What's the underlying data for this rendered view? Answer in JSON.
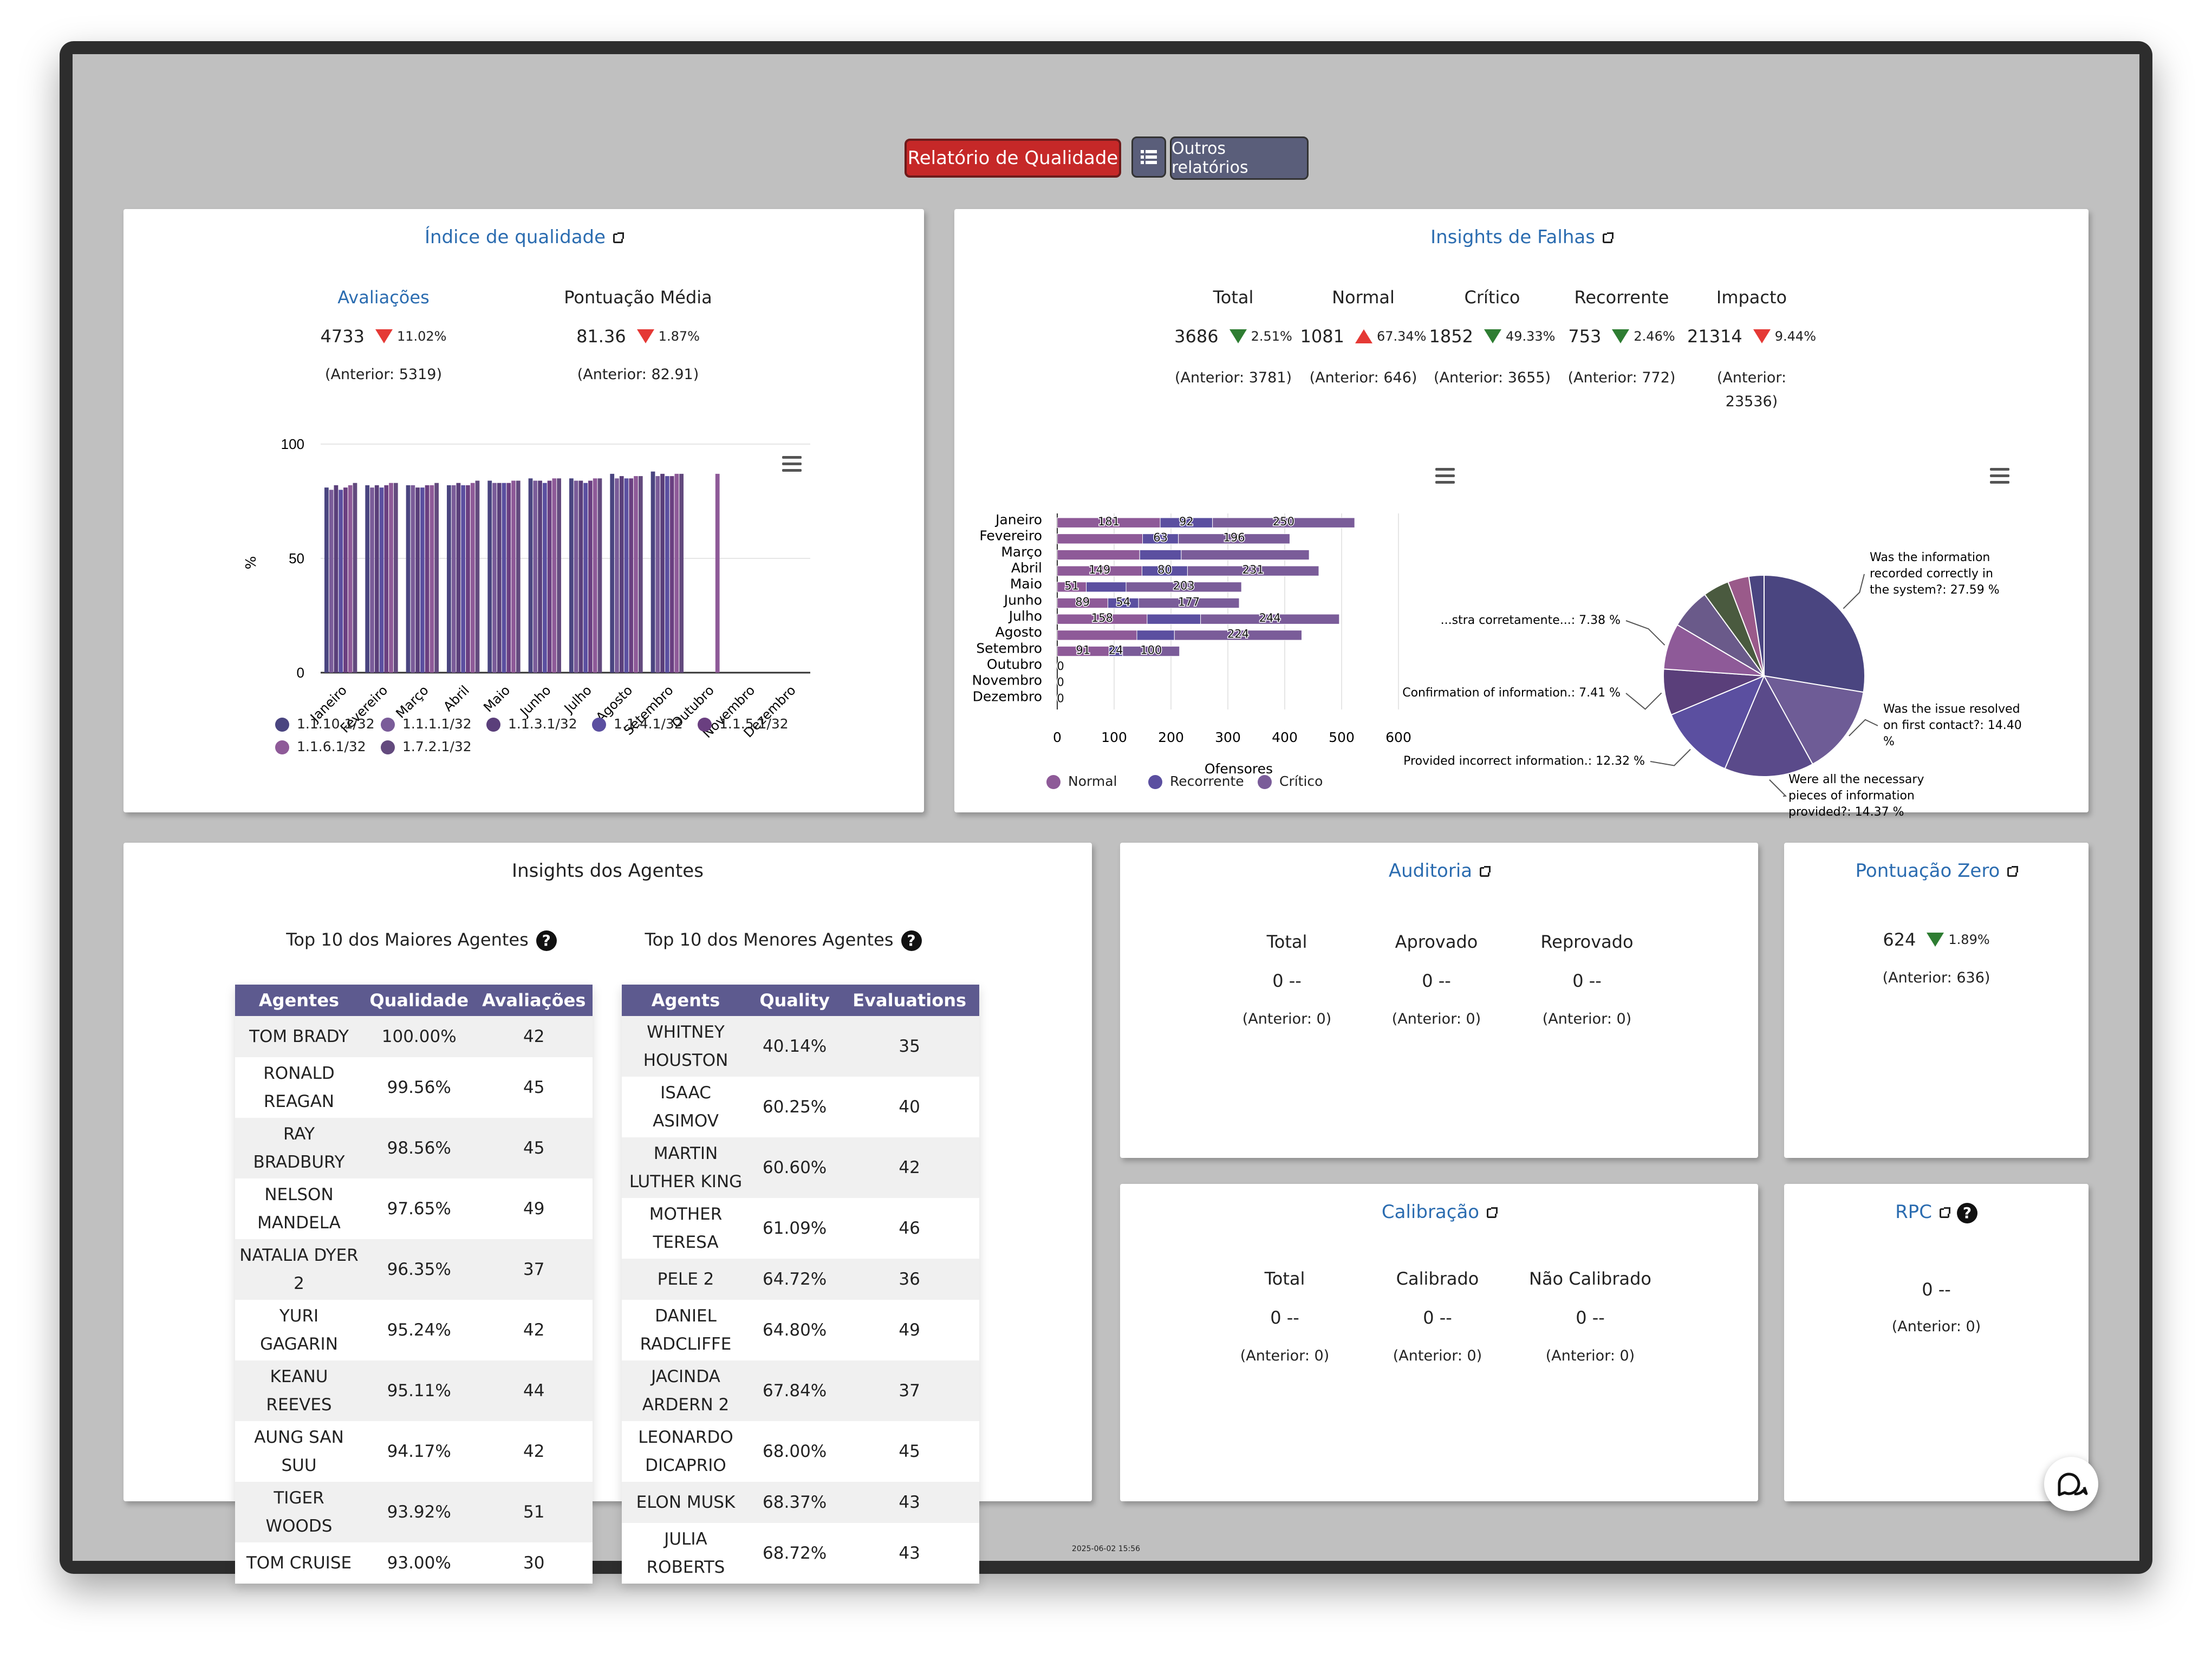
{
  "header": {
    "report_button": "Relatório de Qualidade",
    "list_icon": "list-icon",
    "other_reports": "Outros relatórios"
  },
  "quality_panel": {
    "title": "Índice de qualidade",
    "evaluations": {
      "label": "Avaliações",
      "value": "4733",
      "change": "11.02%",
      "previous": "(Anterior: 5319)"
    },
    "average_score": {
      "label": "Pontuação Média",
      "value": "81.36",
      "change": "1.87%",
      "previous": "(Anterior: 82.91)"
    }
  },
  "failures_panel": {
    "title": "Insights de Falhas",
    "stats": [
      {
        "label": "Total",
        "value": "3686",
        "change": "2.51%",
        "trend": "down-green",
        "previous": "(Anterior: 3781)"
      },
      {
        "label": "Normal",
        "value": "1081",
        "change": "67.34%",
        "trend": "up-red",
        "previous": "(Anterior: 646)"
      },
      {
        "label": "Crítico",
        "value": "1852",
        "change": "49.33%",
        "trend": "down-green",
        "previous": "(Anterior: 3655)"
      },
      {
        "label": "Recorrente",
        "value": "753",
        "change": "2.46%",
        "trend": "down-green",
        "previous": "(Anterior: 772)"
      },
      {
        "label": "Impacto",
        "value": "21314",
        "change": "9.44%",
        "trend": "down-red",
        "previous": "(Anterior: 23536)"
      }
    ]
  },
  "agents_panel": {
    "title": "Insights dos Agentes",
    "top": {
      "title": "Top 10 dos Maiores Agentes",
      "headers": [
        "Agentes",
        "Qualidade",
        "Avaliações"
      ],
      "rows": [
        [
          "TOM BRADY",
          "100.00%",
          "42"
        ],
        [
          "RONALD REAGAN",
          "99.56%",
          "45"
        ],
        [
          "RAY BRADBURY",
          "98.56%",
          "45"
        ],
        [
          "NELSON MANDELA",
          "97.65%",
          "49"
        ],
        [
          "NATALIA DYER 2",
          "96.35%",
          "37"
        ],
        [
          "YURI GAGARIN",
          "95.24%",
          "42"
        ],
        [
          "KEANU REEVES",
          "95.11%",
          "44"
        ],
        [
          "AUNG SAN SUU",
          "94.17%",
          "42"
        ],
        [
          "TIGER WOODS",
          "93.92%",
          "51"
        ],
        [
          "TOM CRUISE",
          "93.00%",
          "30"
        ]
      ]
    },
    "bottom": {
      "title": "Top 10 dos Menores Agentes",
      "headers": [
        "Agents",
        "Quality",
        "Evaluations"
      ],
      "rows": [
        [
          "WHITNEY HOUSTON",
          "40.14%",
          "35"
        ],
        [
          "ISAAC ASIMOV",
          "60.25%",
          "40"
        ],
        [
          "MARTIN LUTHER KING",
          "60.60%",
          "42"
        ],
        [
          "MOTHER TERESA",
          "61.09%",
          "46"
        ],
        [
          "PELE 2",
          "64.72%",
          "36"
        ],
        [
          "DANIEL RADCLIFFE",
          "64.80%",
          "49"
        ],
        [
          "JACINDA ARDERN 2",
          "67.84%",
          "37"
        ],
        [
          "LEONARDO DICAPRIO",
          "68.00%",
          "45"
        ],
        [
          "ELON MUSK",
          "68.37%",
          "43"
        ],
        [
          "JULIA ROBERTS",
          "68.72%",
          "43"
        ]
      ]
    }
  },
  "audit_panel": {
    "title": "Auditoria",
    "stats": [
      {
        "label": "Total",
        "value": "0 --",
        "previous": "(Anterior: 0)"
      },
      {
        "label": "Aprovado",
        "value": "0 --",
        "previous": "(Anterior: 0)"
      },
      {
        "label": "Reprovado",
        "value": "0 --",
        "previous": "(Anterior: 0)"
      }
    ]
  },
  "zero_panel": {
    "title": "Pontuação Zero",
    "value": "624",
    "change": "1.89%",
    "previous": "(Anterior: 636)"
  },
  "calibration_panel": {
    "title": "Calibração",
    "stats": [
      {
        "label": "Total",
        "value": "0 --",
        "previous": "(Anterior: 0)"
      },
      {
        "label": "Calibrado",
        "value": "0 --",
        "previous": "(Anterior: 0)"
      },
      {
        "label": "Não Calibrado",
        "value": "0 --",
        "previous": "(Anterior: 0)"
      }
    ]
  },
  "rpc_panel": {
    "title": "RPC",
    "value": "0 --",
    "previous": "(Anterior: 0)"
  },
  "footer": {
    "timestamp": "2025-06-02 15:56"
  },
  "colors": {
    "accent_red": "#c62828",
    "table_header": "#5d5a8f",
    "button_gray": "#5a5e7a"
  },
  "chart_data": [
    {
      "type": "bar",
      "ylabel": "%",
      "ylim": [
        0,
        100
      ],
      "yticks": [
        0,
        50,
        100
      ],
      "categories": [
        "Janeiro",
        "Fevereiro",
        "Março",
        "Abril",
        "Maio",
        "Junho",
        "Julho",
        "Agosto",
        "Setembro",
        "Outubro",
        "Novembro",
        "Dezembro"
      ],
      "series": [
        {
          "name": "1.1.10.1/32",
          "color": "#4a4580",
          "values": [
            81,
            82,
            82,
            82,
            84,
            85,
            85,
            87,
            88,
            null,
            null,
            null
          ]
        },
        {
          "name": "1.1.1.1/32",
          "color": "#7a5c99",
          "values": [
            80,
            81,
            82,
            82,
            83,
            84,
            84,
            85,
            86,
            null,
            null,
            null
          ]
        },
        {
          "name": "1.1.3.1/32",
          "color": "#5a3f7a",
          "values": [
            82,
            82,
            81,
            83,
            83,
            84,
            84,
            86,
            87,
            null,
            null,
            null
          ]
        },
        {
          "name": "1.1.4.1/32",
          "color": "#5b4fa0",
          "values": [
            80,
            81,
            81,
            82,
            83,
            83,
            83,
            85,
            86,
            null,
            null,
            null
          ]
        },
        {
          "name": "1.1.5.1/32",
          "color": "#6a3f80",
          "values": [
            81,
            82,
            82,
            82,
            83,
            84,
            84,
            85,
            86,
            null,
            null,
            null
          ]
        },
        {
          "name": "1.1.6.1/32",
          "color": "#8e5a98",
          "values": [
            82,
            83,
            82,
            83,
            84,
            85,
            85,
            86,
            87,
            87,
            null,
            null
          ]
        },
        {
          "name": "1.7.2.1/32",
          "color": "#634a7e",
          "values": [
            83,
            83,
            83,
            84,
            84,
            85,
            85,
            86,
            87,
            null,
            null,
            null
          ]
        }
      ],
      "legend": "bottom"
    },
    {
      "type": "bar",
      "orientation": "horizontal",
      "stacked": true,
      "xlabel": "Ofensores",
      "xlim": [
        0,
        600
      ],
      "xticks": [
        0,
        100,
        200,
        300,
        400,
        500,
        600
      ],
      "categories": [
        "Janeiro",
        "Fevereiro",
        "Março",
        "Abril",
        "Maio",
        "Junho",
        "Julho",
        "Agosto",
        "Setembro",
        "Outubro",
        "Novembro",
        "Dezembro"
      ],
      "series": [
        {
          "name": "Normal",
          "color": "#8e5a98",
          "values": [
            181,
            150,
            145,
            149,
            51,
            89,
            158,
            140,
            91,
            0,
            0,
            0
          ]
        },
        {
          "name": "Recorrente",
          "color": "#5b4fa0",
          "values": [
            92,
            63,
            73,
            80,
            70,
            54,
            94,
            66,
            24,
            0,
            0,
            0
          ]
        },
        {
          "name": "Crítico",
          "color": "#7a5c99",
          "values": [
            250,
            196,
            225,
            231,
            203,
            177,
            244,
            224,
            100,
            0,
            0,
            0
          ]
        }
      ],
      "labels": [
        [
          181,
          92,
          250
        ],
        [
          null,
          63,
          196
        ],
        [
          null,
          null,
          null
        ],
        [
          149,
          80,
          231
        ],
        [
          51,
          null,
          203
        ],
        [
          89,
          54,
          177
        ],
        [
          158,
          null,
          244
        ],
        [
          null,
          null,
          224
        ],
        [
          91,
          24,
          100
        ],
        [
          0,
          null,
          null
        ],
        [
          0,
          null,
          null
        ],
        [
          0,
          null,
          null
        ]
      ],
      "legend": "bottom"
    },
    {
      "type": "pie",
      "slices": [
        {
          "label": "Was the information recorded correctly in the system?: 27.59 %",
          "value": 27.59,
          "color": "#4a4580"
        },
        {
          "label": "Was the issue resolved on first contact?: 14.40 %",
          "value": 14.4,
          "color": "#6e5c96"
        },
        {
          "label": "Were all the necessary pieces of information provided?: 14.37 %",
          "value": 14.37,
          "color": "#5a4a8a"
        },
        {
          "label": "Provided incorrect information.: 12.32 %",
          "value": 12.32,
          "color": "#5b4fa0"
        },
        {
          "label": "Confirmation of information.: 7.41 %",
          "value": 7.41,
          "color": "#5a3f7a"
        },
        {
          "label": "...stra corretamente...: 7.38 %",
          "value": 7.38,
          "color": "#8e5a98"
        },
        {
          "label": "",
          "value": 6.5,
          "color": "#6a5a8a"
        },
        {
          "label": "",
          "value": 4.2,
          "color": "#4a5a3f"
        },
        {
          "label": "",
          "value": 3.4,
          "color": "#9a5a8a"
        },
        {
          "label": "",
          "value": 2.43,
          "color": "#4a4580"
        }
      ]
    }
  ]
}
